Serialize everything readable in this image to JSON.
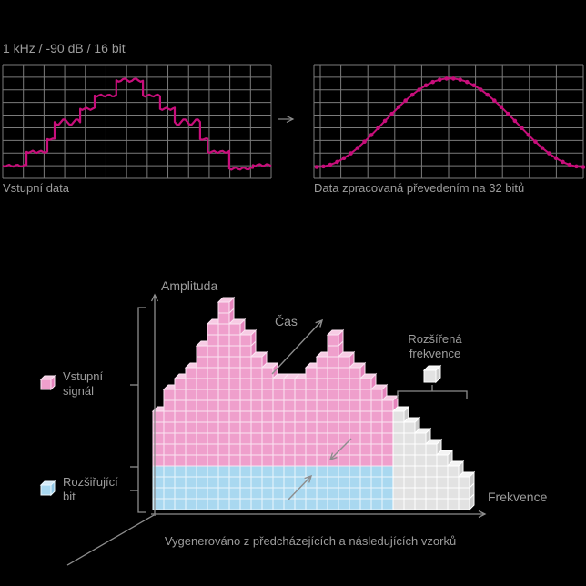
{
  "title": "1 kHz / -90 dB / 16 bit",
  "input_chart": {
    "caption": "Vstupní data"
  },
  "output_chart": {
    "caption": "Data zpracovaná převedením na 32 bitů"
  },
  "cube_diagram": {
    "amplitude_axis_label": "Amplituda",
    "time_axis_label": "Čas",
    "frequency_axis_label": "Frekvence",
    "extended_frequency_label": [
      "Rozšířená",
      "frekvence"
    ],
    "legend": [
      {
        "id": "input-signal",
        "label": [
          "Vstupní",
          "signál"
        ],
        "color_key": "pink"
      },
      {
        "id": "extension-bit",
        "label": [
          "Rozšiřující",
          "bit"
        ],
        "color_key": "blue"
      }
    ],
    "caption": "Vygenerováno z předcházejících a následujících vzorků"
  },
  "colors": {
    "background": "#000000",
    "text": "#9c9c9c",
    "grid": "#7b7b7b",
    "diagram_line": "#8d8d8d",
    "magenta": "#c80e7b",
    "pink_face": "#ef9fcc",
    "pink_top": "#f7cbe4",
    "pink_side": "#e583bc",
    "pink_grout": "#fbe4f2",
    "blue_face": "#a9d8f0",
    "blue_top": "#d3eaf8",
    "blue_side": "#90c6e5",
    "blue_grout": "#eaf6fc",
    "white_face": "#e2e2e2",
    "white_top": "#f4f4f4",
    "white_side": "#cccccc",
    "white_grout": "#ffffff"
  },
  "chart_data": [
    {
      "id": "input-waveform",
      "type": "line",
      "title": "1 kHz / -90 dB / 16 bit",
      "caption": "Vstupní data",
      "description": "quantized (stepped) low-level sine wave with ripple",
      "grid": {
        "cols": 13,
        "rows": 9
      },
      "steps_cols_level": [
        {
          "c0": 0.0,
          "c1": 1.15,
          "level": 1.0,
          "amp": 1.2
        },
        {
          "c0": 1.15,
          "c1": 2.16,
          "level": 2.1,
          "amp": 1.2
        },
        {
          "c0": 2.16,
          "c1": 2.51,
          "level": 3.1,
          "amp": 0.8
        },
        {
          "c0": 2.51,
          "c1": 3.75,
          "level": 4.45,
          "amp": 3.2,
          "wl": 14
        },
        {
          "c0": 3.75,
          "c1": 4.45,
          "level": 5.5,
          "amp": 1.2
        },
        {
          "c0": 4.45,
          "c1": 5.5,
          "level": 6.55,
          "amp": 1.2
        },
        {
          "c0": 5.5,
          "c1": 6.79,
          "level": 7.77,
          "amp": 1.8,
          "wl": 12
        },
        {
          "c0": 6.79,
          "c1": 7.62,
          "level": 6.55,
          "amp": 1.2
        },
        {
          "c0": 7.62,
          "c1": 8.33,
          "level": 5.5,
          "amp": 1.2
        },
        {
          "c0": 8.33,
          "c1": 9.56,
          "level": 4.45,
          "amp": 3.2,
          "wl": 14
        },
        {
          "c0": 9.56,
          "c1": 9.92,
          "level": 3.1,
          "amp": 0.8
        },
        {
          "c0": 9.92,
          "c1": 10.97,
          "level": 2.1,
          "amp": 1.2
        },
        {
          "c0": 10.97,
          "c1": 12.12,
          "level": 0.78,
          "amp": 1.2
        },
        {
          "c0": 12.12,
          "c1": 13.0,
          "level": 1.05,
          "amp": 1.2
        }
      ]
    },
    {
      "id": "output-waveform",
      "type": "line",
      "caption": "Data zpracovaná převedením na 32 bitů",
      "description": "smooth 32-bit interpolated sine hill with sample dots",
      "grid": {
        "cols": 10,
        "rows": 9
      },
      "x_range_cols": [
        0.1,
        10.0
      ],
      "base_row": 0.9,
      "peak_row": 7.9,
      "sample_dots": 40
    },
    {
      "id": "spectrum-cubes",
      "type": "bar",
      "x_axis": "Frekvence",
      "y_axis": "Amplituda",
      "z_axis": "Čas",
      "note": "cube-column heights left to right, in cubes",
      "pink_heights": [
        9,
        11,
        12,
        13,
        15,
        17,
        19,
        17,
        16,
        14,
        13,
        12,
        12,
        12,
        13,
        14,
        16,
        14,
        13,
        12,
        11,
        10
      ],
      "white_heights": [
        9,
        8,
        7,
        6,
        5,
        4,
        3
      ],
      "blue_base_rows": 4
    }
  ]
}
